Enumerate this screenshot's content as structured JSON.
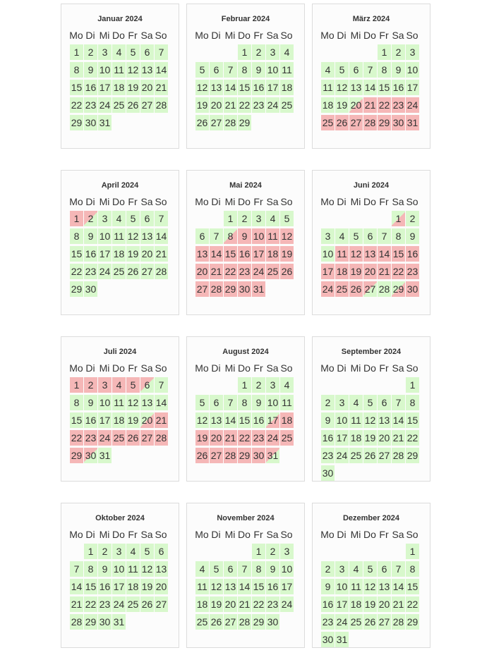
{
  "weekdays": [
    "Mo",
    "Di",
    "Mi",
    "Do",
    "Fr",
    "Sa",
    "So"
  ],
  "colors": {
    "free": "#d8f8cc",
    "booked": "#f5b7b7"
  },
  "months": [
    {
      "title": "Januar 2024",
      "offset": 0,
      "days": 31,
      "states": "fffffffffffffffffffffffffffffff"
    },
    {
      "title": "Februar 2024",
      "offset": 3,
      "days": 29,
      "states": "fffffffffffffffffffffffffffff"
    },
    {
      "title": "März 2024",
      "offset": 4,
      "days": 31,
      "states": "fffffffffffffffffffabbbbbbbbbbb"
    },
    {
      "title": "April 2024",
      "offset": 0,
      "days": 30,
      "states": "bdffffffffffffffffffffffffffff"
    },
    {
      "title": "Mai 2024",
      "offset": 2,
      "days": 31,
      "states": "fffffffabbbbbbbbbbbbbbbbbbbbbbb"
    },
    {
      "title": "Juni 2024",
      "offset": 5,
      "days": 30,
      "states": "afffffffffbbbbbbbbbbbbbbbbdfab"
    },
    {
      "title": "Juli 2024",
      "offset": 0,
      "days": 31,
      "states": "bbbbbdfffffffffffffabbbbbbbbbdf"
    },
    {
      "title": "August 2024",
      "offset": 3,
      "days": 31,
      "states": "ffffffffffffffffabbbbbbbbbbbbbd"
    },
    {
      "title": "September 2024",
      "offset": 6,
      "days": 30,
      "states": "ffffffffffffffffffffffffffffff"
    },
    {
      "title": "Oktober 2024",
      "offset": 1,
      "days": 31,
      "states": "fffffffffffffffffffffffffffffff"
    },
    {
      "title": "November 2024",
      "offset": 4,
      "days": 30,
      "states": "ffffffffffffffffffffffffffffff"
    },
    {
      "title": "Dezember 2024",
      "offset": 6,
      "days": 31,
      "states": "fffffffffffffffffffffffffffffff"
    }
  ]
}
